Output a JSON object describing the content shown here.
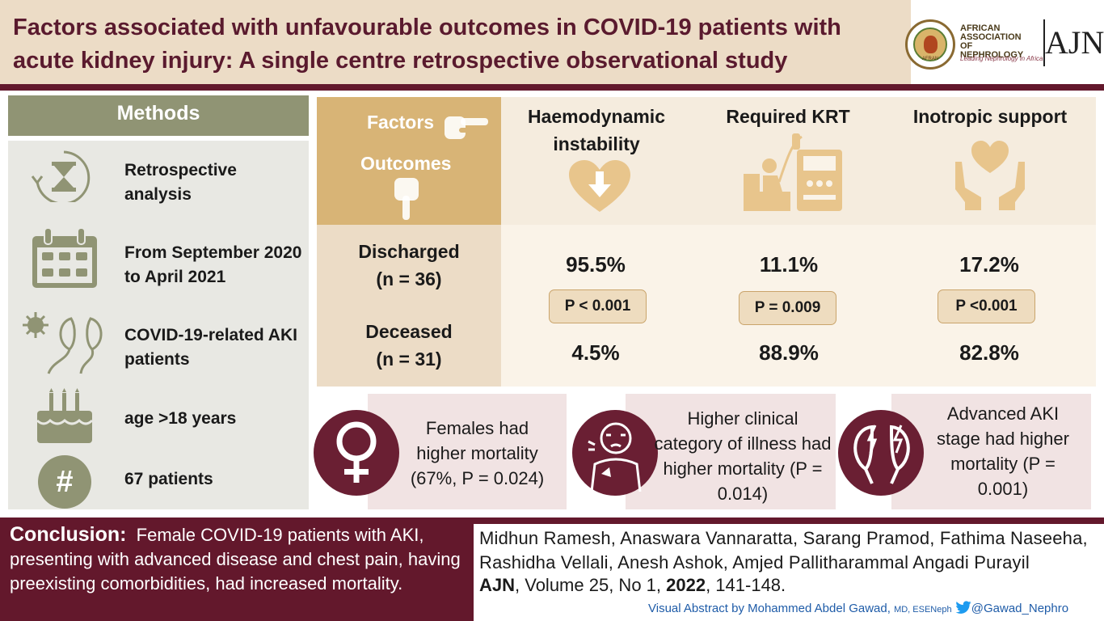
{
  "header": {
    "title": "Factors associated with unfavourable outcomes in COVID-19 patients with acute kidney injury: A single centre retrospective observational study",
    "society_name": "AFRICAN ASSOCIATION OF NEPHROLOGY",
    "society_tagline": "Leading Nephrology in Africa",
    "seal_text": "AFRAN",
    "journal_logo": "AJN"
  },
  "methods": {
    "heading": "Methods",
    "items": [
      {
        "icon": "hourglass-icon",
        "text": "Retrospective analysis"
      },
      {
        "icon": "calendar-icon",
        "text": "From September 2020 to April 2021"
      },
      {
        "icon": "virus-kidney-icon",
        "text": "COVID-19-related AKI patients"
      },
      {
        "icon": "birthday-cake-icon",
        "text": "age >18 years"
      },
      {
        "icon": "hash-icon",
        "text": "67 patients"
      }
    ]
  },
  "table": {
    "factors_label": "Factors",
    "outcomes_label": "Outcomes",
    "columns": [
      {
        "label": "Haemodynamic instability",
        "icon": "heart-down-arrow-icon",
        "discharged": "95.5%",
        "p_value": "P < 0.001",
        "deceased": "4.5%"
      },
      {
        "label": "Required KRT",
        "icon": "dialysis-icon",
        "discharged": "11.1%",
        "p_value": "P = 0.009",
        "deceased": "88.9%"
      },
      {
        "label": "Inotropic support",
        "icon": "hands-heart-icon",
        "discharged": "17.2%",
        "p_value": "P <0.001",
        "deceased": "82.8%"
      }
    ],
    "rows": [
      {
        "label": "Discharged",
        "n": "(n = 36)"
      },
      {
        "label": "Deceased",
        "n": "(n = 31)"
      }
    ]
  },
  "findings": [
    {
      "icon": "female-symbol-icon",
      "text": "Females had higher mortality (67%, P = 0.024)"
    },
    {
      "icon": "patient-chest-pain-icon",
      "text": "Higher clinical category of illness had higher mortality (P = 0.014)"
    },
    {
      "icon": "kidneys-icon",
      "text": "Advanced AKI stage had higher mortality (P = 0.001)"
    }
  ],
  "conclusion": {
    "label": "Conclusion:",
    "text": "Female COVID-19 patients with AKI, presenting with advanced disease and chest pain, having preexisting comorbidities, had increased mortality."
  },
  "reference": {
    "authors": "Midhun Ramesh, Anaswara Vannaratta, Sarang Pramod, Fathima Naseeha, Rashidha Vellali, Anesh Ashok, Amjed Pallitharammal Angadi Purayil",
    "journal": "AJN",
    "volume": ", Volume 25, No 1, ",
    "year": "2022",
    "pages": ", 141-148."
  },
  "credit": {
    "text": "Visual Abstract by Mohammed Abdel Gawad,",
    "degrees": "MD, ESENeph",
    "handle": "@Gawad_Nephro"
  },
  "colors": {
    "maroon": "#63182c",
    "beige_header": "#ecdcc6",
    "olive": "#909474",
    "gold": "#d8b476",
    "icon_gold": "#e8c58c",
    "twitter_blue": "#1d9bf0"
  }
}
